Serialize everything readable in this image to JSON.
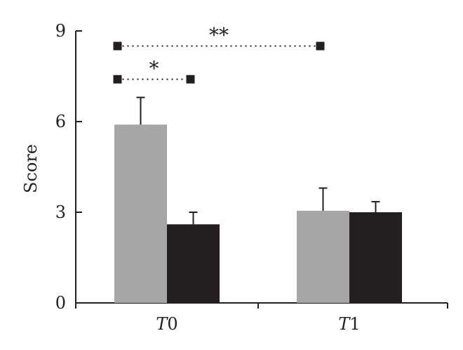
{
  "chart_data": {
    "type": "bar",
    "categories": [
      "T0",
      "T1"
    ],
    "category_labels": [
      {
        "italic": "T",
        "rest": "0"
      },
      {
        "italic": "T",
        "rest": "1"
      }
    ],
    "series": [
      {
        "values": [
          5.9,
          3.05
        ],
        "errors": [
          0.9,
          0.75
        ],
        "color": "#a6a6a6"
      },
      {
        "values": [
          2.6,
          3.0
        ],
        "errors": [
          0.4,
          0.35
        ],
        "color": "#231f20"
      }
    ],
    "ylabel": "Score",
    "xlabel": "",
    "ylim": [
      0,
      9
    ],
    "yticks": [
      0,
      3,
      6,
      9
    ],
    "grid": false,
    "significance": [
      {
        "label": "**",
        "from": {
          "category": 0,
          "series": 0
        },
        "to": {
          "category": 1,
          "series": 0
        },
        "level": 8.5
      },
      {
        "label": "*",
        "from": {
          "category": 0,
          "series": 0
        },
        "to": {
          "category": 0,
          "series": 1
        },
        "level": 7.4
      }
    ]
  }
}
